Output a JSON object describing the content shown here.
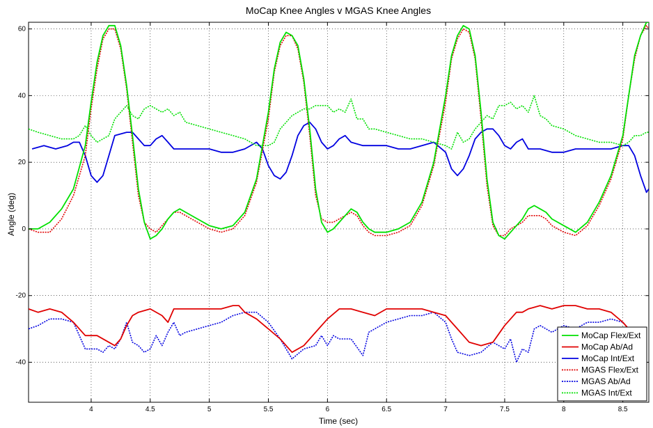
{
  "chart_data": {
    "type": "line",
    "title": "MoCap Knee Angles v MGAS Knee Angles",
    "xlabel": "Time (sec)",
    "ylabel": "Angle (deg)",
    "xlim": [
      3.47,
      8.72
    ],
    "ylim": [
      -52,
      62
    ],
    "xticks": [
      4,
      4.5,
      5,
      5.5,
      6,
      6.5,
      7,
      7.5,
      8,
      8.5
    ],
    "yticks": [
      -40,
      -20,
      0,
      20,
      40,
      60
    ],
    "grid": true,
    "legend_position": "bottom-right",
    "series": [
      {
        "name": "MoCap Flex/Ext",
        "color": "#00e000",
        "style": "solid",
        "x": [
          3.47,
          3.55,
          3.65,
          3.75,
          3.85,
          3.95,
          4.0,
          4.05,
          4.1,
          4.15,
          4.2,
          4.25,
          4.3,
          4.35,
          4.4,
          4.45,
          4.5,
          4.55,
          4.6,
          4.65,
          4.7,
          4.75,
          4.8,
          4.9,
          5.0,
          5.1,
          5.2,
          5.3,
          5.4,
          5.5,
          5.55,
          5.6,
          5.65,
          5.7,
          5.75,
          5.8,
          5.85,
          5.9,
          5.95,
          6.0,
          6.05,
          6.1,
          6.15,
          6.2,
          6.25,
          6.3,
          6.35,
          6.4,
          6.5,
          6.6,
          6.7,
          6.8,
          6.9,
          7.0,
          7.05,
          7.1,
          7.15,
          7.2,
          7.25,
          7.3,
          7.35,
          7.4,
          7.45,
          7.5,
          7.55,
          7.6,
          7.65,
          7.7,
          7.75,
          7.8,
          7.85,
          7.9,
          8.0,
          8.1,
          8.2,
          8.3,
          8.4,
          8.5,
          8.55,
          8.6,
          8.65,
          8.7,
          8.72
        ],
        "y": [
          0,
          0,
          2,
          6,
          12,
          25,
          38,
          50,
          58,
          61,
          61,
          55,
          43,
          28,
          12,
          2,
          -3,
          -2,
          0,
          3,
          5,
          6,
          5,
          3,
          1,
          0,
          1,
          5,
          15,
          35,
          48,
          56,
          59,
          58,
          55,
          45,
          30,
          12,
          2,
          -1,
          0,
          2,
          4,
          6,
          5,
          2,
          0,
          -1,
          -1,
          0,
          2,
          8,
          20,
          40,
          52,
          58,
          61,
          60,
          52,
          35,
          15,
          2,
          -2,
          -3,
          -1,
          1,
          3,
          6,
          7,
          6,
          5,
          3,
          1,
          -1,
          2,
          8,
          16,
          28,
          40,
          52,
          58,
          62,
          62
        ]
      },
      {
        "name": "MoCap Ab/Ad",
        "color": "#e00000",
        "style": "solid",
        "x": [
          3.47,
          3.55,
          3.65,
          3.75,
          3.85,
          3.95,
          4.05,
          4.15,
          4.2,
          4.25,
          4.3,
          4.35,
          4.4,
          4.5,
          4.6,
          4.65,
          4.7,
          4.8,
          4.9,
          5.0,
          5.1,
          5.2,
          5.25,
          5.3,
          5.4,
          5.5,
          5.6,
          5.7,
          5.8,
          5.9,
          6.0,
          6.1,
          6.2,
          6.3,
          6.4,
          6.5,
          6.6,
          6.7,
          6.8,
          6.9,
          7.0,
          7.1,
          7.2,
          7.3,
          7.4,
          7.5,
          7.6,
          7.65,
          7.7,
          7.8,
          7.9,
          8.0,
          8.1,
          8.2,
          8.3,
          8.4,
          8.5,
          8.55
        ],
        "y": [
          -24,
          -25,
          -24,
          -25,
          -28,
          -32,
          -32,
          -34,
          -35,
          -33,
          -29,
          -26,
          -25,
          -24,
          -26,
          -28,
          -24,
          -24,
          -24,
          -24,
          -24,
          -23,
          -23,
          -25,
          -27,
          -30,
          -33,
          -37,
          -35,
          -31,
          -27,
          -24,
          -24,
          -25,
          -26,
          -24,
          -24,
          -24,
          -24,
          -25,
          -26,
          -30,
          -34,
          -35,
          -34,
          -29,
          -25,
          -25,
          -24,
          -23,
          -24,
          -23,
          -23,
          -24,
          -24,
          -25,
          -28,
          -30
        ]
      },
      {
        "name": "MoCap Int/Ext",
        "color": "#0000e0",
        "style": "solid",
        "x": [
          3.5,
          3.6,
          3.7,
          3.8,
          3.85,
          3.9,
          3.95,
          4.0,
          4.05,
          4.1,
          4.15,
          4.2,
          4.3,
          4.35,
          4.4,
          4.45,
          4.5,
          4.55,
          4.6,
          4.65,
          4.7,
          4.75,
          4.8,
          4.9,
          5.0,
          5.1,
          5.2,
          5.3,
          5.4,
          5.45,
          5.5,
          5.55,
          5.6,
          5.65,
          5.7,
          5.75,
          5.8,
          5.85,
          5.9,
          5.95,
          6.0,
          6.05,
          6.1,
          6.15,
          6.2,
          6.3,
          6.4,
          6.5,
          6.6,
          6.7,
          6.8,
          6.9,
          7.0,
          7.05,
          7.1,
          7.15,
          7.2,
          7.25,
          7.3,
          7.35,
          7.4,
          7.45,
          7.5,
          7.55,
          7.6,
          7.65,
          7.7,
          7.75,
          7.8,
          7.9,
          8.0,
          8.1,
          8.2,
          8.3,
          8.4,
          8.5,
          8.55,
          8.6,
          8.65,
          8.7,
          8.72
        ],
        "y": [
          24,
          25,
          24,
          25,
          26,
          26,
          22,
          16,
          14,
          16,
          22,
          28,
          29,
          29,
          27,
          25,
          25,
          27,
          28,
          26,
          24,
          24,
          24,
          24,
          24,
          23,
          23,
          24,
          26,
          24,
          19,
          16,
          15,
          17,
          22,
          28,
          31,
          32,
          30,
          26,
          24,
          25,
          27,
          28,
          26,
          25,
          25,
          25,
          24,
          24,
          25,
          26,
          23,
          18,
          16,
          18,
          22,
          27,
          29,
          30,
          30,
          28,
          25,
          24,
          26,
          27,
          24,
          24,
          24,
          23,
          23,
          24,
          24,
          24,
          24,
          25,
          25,
          22,
          16,
          11,
          12
        ]
      },
      {
        "name": "MGAS Flex/Ext",
        "color": "#e00000",
        "style": "dotted",
        "x": [
          3.47,
          3.55,
          3.65,
          3.75,
          3.85,
          3.95,
          4.0,
          4.05,
          4.1,
          4.15,
          4.2,
          4.25,
          4.3,
          4.35,
          4.4,
          4.45,
          4.5,
          4.55,
          4.6,
          4.65,
          4.7,
          4.75,
          4.8,
          4.9,
          5.0,
          5.1,
          5.2,
          5.3,
          5.4,
          5.5,
          5.55,
          5.6,
          5.65,
          5.7,
          5.75,
          5.8,
          5.85,
          5.9,
          5.95,
          6.0,
          6.05,
          6.1,
          6.15,
          6.2,
          6.25,
          6.3,
          6.35,
          6.4,
          6.5,
          6.6,
          6.7,
          6.8,
          6.9,
          7.0,
          7.05,
          7.1,
          7.15,
          7.2,
          7.25,
          7.3,
          7.35,
          7.4,
          7.45,
          7.5,
          7.55,
          7.6,
          7.65,
          7.7,
          7.75,
          7.8,
          7.85,
          7.9,
          8.0,
          8.1,
          8.2,
          8.3,
          8.4,
          8.5,
          8.55,
          8.6,
          8.65,
          8.7,
          8.72
        ],
        "y": [
          0,
          -1,
          -1,
          3,
          10,
          22,
          36,
          48,
          57,
          60,
          60,
          54,
          42,
          26,
          10,
          2,
          0,
          -1,
          1,
          3,
          5,
          5,
          4,
          2,
          0,
          -1,
          0,
          4,
          14,
          33,
          47,
          55,
          58,
          58,
          54,
          44,
          28,
          10,
          3,
          2,
          2,
          3,
          4,
          5,
          4,
          1,
          -1,
          -2,
          -2,
          -1,
          1,
          7,
          19,
          38,
          51,
          57,
          60,
          59,
          51,
          33,
          13,
          1,
          -2,
          -2,
          0,
          1,
          2,
          4,
          4,
          4,
          3,
          1,
          -1,
          -2,
          1,
          7,
          15,
          27,
          40,
          51,
          58,
          61,
          60
        ]
      },
      {
        "name": "MGAS Ab/Ad",
        "color": "#0000e0",
        "style": "dotted",
        "x": [
          3.47,
          3.55,
          3.65,
          3.75,
          3.85,
          3.95,
          4.05,
          4.1,
          4.15,
          4.2,
          4.25,
          4.3,
          4.35,
          4.4,
          4.45,
          4.5,
          4.55,
          4.6,
          4.65,
          4.7,
          4.75,
          4.8,
          4.9,
          5.0,
          5.1,
          5.2,
          5.3,
          5.4,
          5.5,
          5.6,
          5.7,
          5.8,
          5.9,
          5.95,
          6.0,
          6.05,
          6.1,
          6.2,
          6.3,
          6.35,
          6.4,
          6.5,
          6.6,
          6.7,
          6.8,
          6.9,
          7.0,
          7.05,
          7.1,
          7.2,
          7.3,
          7.4,
          7.5,
          7.55,
          7.6,
          7.65,
          7.7,
          7.75,
          7.8,
          7.9,
          8.0,
          8.1,
          8.2,
          8.3,
          8.4,
          8.5,
          8.55
        ],
        "y": [
          -30,
          -29,
          -27,
          -27,
          -28,
          -36,
          -36,
          -37,
          -35,
          -36,
          -33,
          -28,
          -34,
          -35,
          -37,
          -36,
          -32,
          -35,
          -31,
          -28,
          -32,
          -31,
          -30,
          -29,
          -28,
          -26,
          -25,
          -25,
          -28,
          -33,
          -39,
          -36,
          -35,
          -32,
          -35,
          -32,
          -33,
          -33,
          -38,
          -31,
          -30,
          -28,
          -27,
          -26,
          -26,
          -25,
          -28,
          -33,
          -37,
          -38,
          -37,
          -34,
          -36,
          -33,
          -40,
          -36,
          -37,
          -30,
          -29,
          -31,
          -29,
          -30,
          -28,
          -28,
          -27,
          -28,
          -30
        ]
      },
      {
        "name": "MGAS Int/Ext",
        "color": "#00e000",
        "style": "dotted",
        "x": [
          3.47,
          3.55,
          3.65,
          3.75,
          3.85,
          3.9,
          3.95,
          4.0,
          4.05,
          4.1,
          4.15,
          4.2,
          4.25,
          4.3,
          4.35,
          4.4,
          4.45,
          4.5,
          4.55,
          4.6,
          4.65,
          4.7,
          4.75,
          4.8,
          4.9,
          5.0,
          5.1,
          5.2,
          5.3,
          5.4,
          5.5,
          5.55,
          5.6,
          5.65,
          5.7,
          5.75,
          5.8,
          5.85,
          5.9,
          6.0,
          6.05,
          6.1,
          6.15,
          6.2,
          6.25,
          6.3,
          6.35,
          6.4,
          6.5,
          6.6,
          6.7,
          6.8,
          6.9,
          7.0,
          7.05,
          7.1,
          7.15,
          7.2,
          7.25,
          7.3,
          7.35,
          7.4,
          7.45,
          7.5,
          7.55,
          7.6,
          7.65,
          7.7,
          7.75,
          7.8,
          7.85,
          7.9,
          8.0,
          8.1,
          8.2,
          8.3,
          8.4,
          8.5,
          8.55,
          8.6,
          8.65,
          8.7,
          8.72
        ],
        "y": [
          30,
          29,
          28,
          27,
          27,
          28,
          31,
          28,
          26,
          27,
          28,
          33,
          35,
          37,
          34,
          33,
          36,
          37,
          36,
          35,
          36,
          34,
          35,
          32,
          31,
          30,
          29,
          28,
          27,
          25,
          25,
          26,
          30,
          32,
          34,
          35,
          36,
          36,
          37,
          37,
          35,
          36,
          35,
          39,
          33,
          33,
          30,
          30,
          29,
          28,
          27,
          27,
          26,
          25,
          24,
          29,
          26,
          27,
          30,
          32,
          34,
          33,
          37,
          37,
          38,
          36,
          37,
          35,
          40,
          34,
          33,
          31,
          30,
          28,
          27,
          26,
          26,
          25,
          26,
          28,
          28,
          29,
          29
        ]
      }
    ]
  }
}
